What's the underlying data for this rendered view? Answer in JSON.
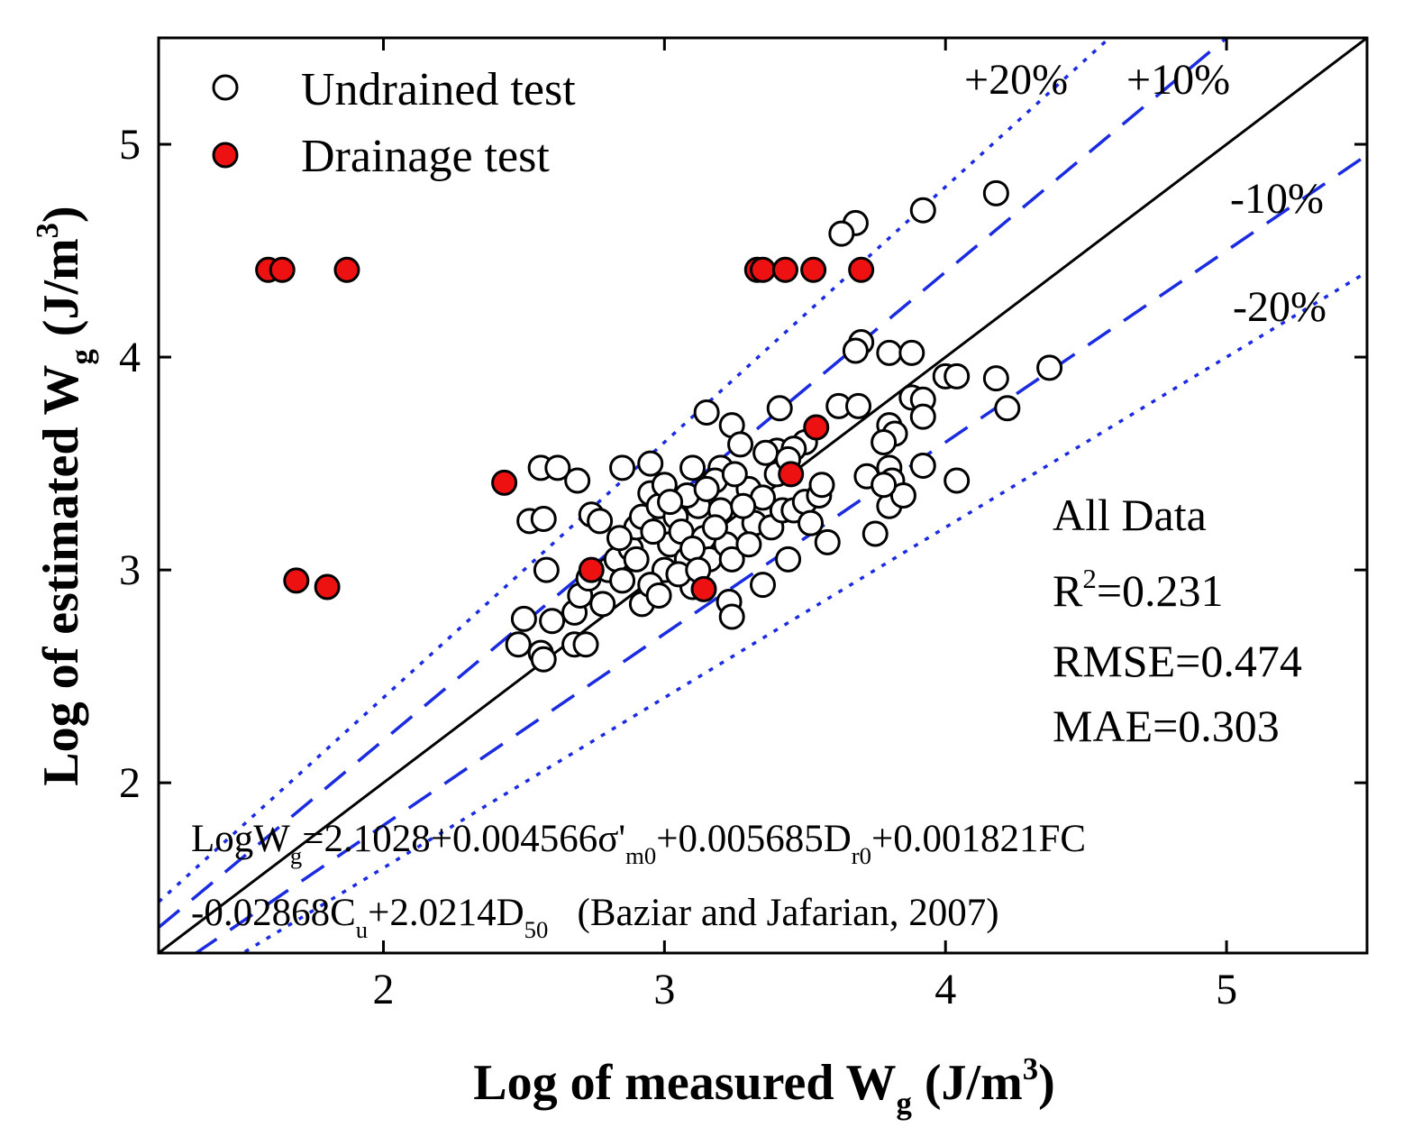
{
  "chart_data": {
    "type": "scatter",
    "xlim": [
      1.2,
      5.5
    ],
    "ylim": [
      1.2,
      5.5
    ],
    "x_ticks": [
      2,
      3,
      4,
      5
    ],
    "y_ticks": [
      2,
      3,
      4,
      5
    ],
    "tick_labels_x": [
      "2",
      "3",
      "4",
      "5"
    ],
    "tick_labels_y": [
      "2",
      "3",
      "4",
      "5"
    ],
    "xlabel": {
      "main": "Log of measured W",
      "sub": "g",
      "unit_a": " (J/m",
      "sup": "3",
      "unit_b": ")"
    },
    "ylabel": {
      "main": "Log of estimated W",
      "sub": "g",
      "unit_a": " (J/m",
      "sup": "3",
      "unit_b": ")"
    },
    "legend": [
      {
        "label": "Undrained test",
        "marker": "open-circle"
      },
      {
        "label": "Drainage test",
        "marker": "filled-circle"
      }
    ],
    "reference_lines": [
      {
        "label": "1:1",
        "slope": 1.0,
        "style": "solid",
        "color": "#000000"
      },
      {
        "label": "+10%",
        "slope": 1.1,
        "style": "dashed",
        "color": "#1a2be0"
      },
      {
        "label": "-10%",
        "slope": 0.9,
        "style": "dashed",
        "color": "#1a2be0"
      },
      {
        "label": "+20%",
        "slope": 1.2,
        "style": "dotted",
        "color": "#1a2be0"
      },
      {
        "label": "-20%",
        "slope": 0.8,
        "style": "dotted",
        "color": "#1a2be0"
      }
    ],
    "stats": {
      "title": "All Data",
      "r2_label": "R",
      "r2_sup": "2",
      "r2_value": "=0.231",
      "rmse": "RMSE=0.474",
      "mae": "MAE=0.303"
    },
    "formula": {
      "line1": [
        {
          "t": "LogW"
        },
        {
          "t": "g",
          "sub": true
        },
        {
          "t": "=2.1028+0.004566σ'"
        },
        {
          "t": "m0",
          "sub": true
        },
        {
          "t": "+0.005685D"
        },
        {
          "t": "r0",
          "sub": true
        },
        {
          "t": "+0.001821FC"
        }
      ],
      "line2": [
        {
          "t": "-0.02868C"
        },
        {
          "t": "u",
          "sub": true
        },
        {
          "t": "+2.0214D"
        },
        {
          "t": "50",
          "sub": true
        },
        {
          "t": "   (Baziar and Jafarian, 2007)"
        }
      ]
    },
    "series": [
      {
        "name": "Undrained test",
        "marker": "open-circle",
        "points": [
          [
            4.18,
            4.77
          ],
          [
            3.92,
            4.69
          ],
          [
            3.68,
            4.63
          ],
          [
            3.63,
            4.58
          ],
          [
            3.7,
            4.07
          ],
          [
            3.68,
            4.03
          ],
          [
            3.8,
            4.02
          ],
          [
            3.88,
            4.02
          ],
          [
            4.37,
            3.95
          ],
          [
            4.0,
            3.91
          ],
          [
            4.04,
            3.91
          ],
          [
            4.18,
            3.9
          ],
          [
            4.22,
            3.76
          ],
          [
            3.88,
            3.81
          ],
          [
            3.92,
            3.8
          ],
          [
            3.92,
            3.72
          ],
          [
            3.15,
            3.74
          ],
          [
            3.41,
            3.76
          ],
          [
            3.62,
            3.77
          ],
          [
            3.69,
            3.77
          ],
          [
            3.24,
            3.68
          ],
          [
            3.5,
            3.6
          ],
          [
            3.8,
            3.68
          ],
          [
            3.82,
            3.64
          ],
          [
            3.78,
            3.6
          ],
          [
            3.27,
            3.59
          ],
          [
            3.4,
            3.56
          ],
          [
            3.46,
            3.57
          ],
          [
            2.56,
            3.48
          ],
          [
            2.62,
            3.48
          ],
          [
            2.85,
            3.48
          ],
          [
            2.95,
            3.5
          ],
          [
            3.1,
            3.48
          ],
          [
            3.2,
            3.48
          ],
          [
            3.8,
            3.48
          ],
          [
            3.92,
            3.49
          ],
          [
            4.04,
            3.42
          ],
          [
            2.69,
            3.42
          ],
          [
            3.72,
            3.44
          ],
          [
            3.81,
            3.42
          ],
          [
            2.74,
            3.26
          ],
          [
            2.77,
            3.23
          ],
          [
            2.52,
            3.23
          ],
          [
            2.57,
            3.24
          ],
          [
            2.58,
            3.0
          ],
          [
            2.6,
            2.76
          ],
          [
            2.5,
            2.77
          ],
          [
            2.48,
            2.65
          ],
          [
            2.56,
            2.61
          ],
          [
            2.57,
            2.58
          ],
          [
            2.68,
            2.65
          ],
          [
            2.72,
            2.65
          ],
          [
            2.68,
            2.8
          ],
          [
            2.7,
            2.88
          ],
          [
            2.73,
            2.96
          ],
          [
            2.78,
            2.84
          ],
          [
            2.8,
            3.0
          ],
          [
            2.83,
            3.05
          ],
          [
            2.88,
            3.1
          ],
          [
            2.9,
            3.2
          ],
          [
            2.92,
            3.25
          ],
          [
            2.95,
            3.36
          ],
          [
            2.98,
            3.3
          ],
          [
            3.0,
            3.0
          ],
          [
            3.02,
            3.12
          ],
          [
            3.04,
            3.25
          ],
          [
            3.06,
            3.18
          ],
          [
            3.08,
            3.05
          ],
          [
            3.1,
            2.92
          ],
          [
            3.12,
            3.3
          ],
          [
            3.14,
            3.15
          ],
          [
            3.16,
            3.05
          ],
          [
            3.18,
            3.42
          ],
          [
            3.2,
            3.28
          ],
          [
            3.22,
            3.12
          ],
          [
            3.24,
            3.05
          ],
          [
            3.23,
            2.85
          ],
          [
            3.24,
            2.78
          ],
          [
            2.92,
            2.84
          ],
          [
            2.95,
            2.93
          ],
          [
            2.98,
            2.88
          ],
          [
            3.05,
            2.98
          ],
          [
            3.3,
            3.38
          ],
          [
            3.32,
            3.22
          ],
          [
            3.35,
            3.34
          ],
          [
            3.38,
            3.2
          ],
          [
            3.4,
            3.45
          ],
          [
            3.42,
            3.28
          ],
          [
            3.35,
            2.93
          ],
          [
            3.44,
            3.05
          ],
          [
            3.46,
            3.28
          ],
          [
            3.5,
            3.32
          ],
          [
            3.52,
            3.22
          ],
          [
            3.55,
            3.35
          ],
          [
            3.58,
            3.13
          ],
          [
            3.56,
            3.4
          ],
          [
            3.75,
            3.17
          ],
          [
            3.8,
            3.3
          ],
          [
            3.85,
            3.35
          ],
          [
            3.78,
            3.4
          ],
          [
            2.85,
            2.95
          ],
          [
            3.0,
            3.4
          ],
          [
            3.08,
            3.35
          ],
          [
            3.15,
            3.38
          ],
          [
            3.25,
            3.45
          ],
          [
            3.28,
            3.3
          ],
          [
            3.1,
            3.1
          ],
          [
            2.9,
            3.05
          ],
          [
            3.18,
            3.2
          ],
          [
            2.84,
            3.15
          ],
          [
            3.02,
            3.32
          ],
          [
            3.36,
            3.55
          ],
          [
            3.44,
            3.52
          ],
          [
            3.3,
            3.12
          ],
          [
            2.96,
            3.18
          ],
          [
            3.12,
            3.0
          ]
        ]
      },
      {
        "name": "Drainage test",
        "marker": "filled-circle",
        "points": [
          [
            1.59,
            4.41
          ],
          [
            1.64,
            4.41
          ],
          [
            1.87,
            4.41
          ],
          [
            3.33,
            4.41
          ],
          [
            3.35,
            4.41
          ],
          [
            3.43,
            4.41
          ],
          [
            3.53,
            4.41
          ],
          [
            3.7,
            4.41
          ],
          [
            2.43,
            3.41
          ],
          [
            1.69,
            2.95
          ],
          [
            1.8,
            2.92
          ],
          [
            2.74,
            3.0
          ],
          [
            3.14,
            2.91
          ],
          [
            3.45,
            3.45
          ],
          [
            3.54,
            3.67
          ]
        ]
      }
    ]
  },
  "colors": {
    "undrained_fill": "#ffffff",
    "drainage_fill": "#ee1111",
    "marker_stroke": "#000000",
    "band_lines": "#1a2be0",
    "identity_line": "#000000"
  }
}
